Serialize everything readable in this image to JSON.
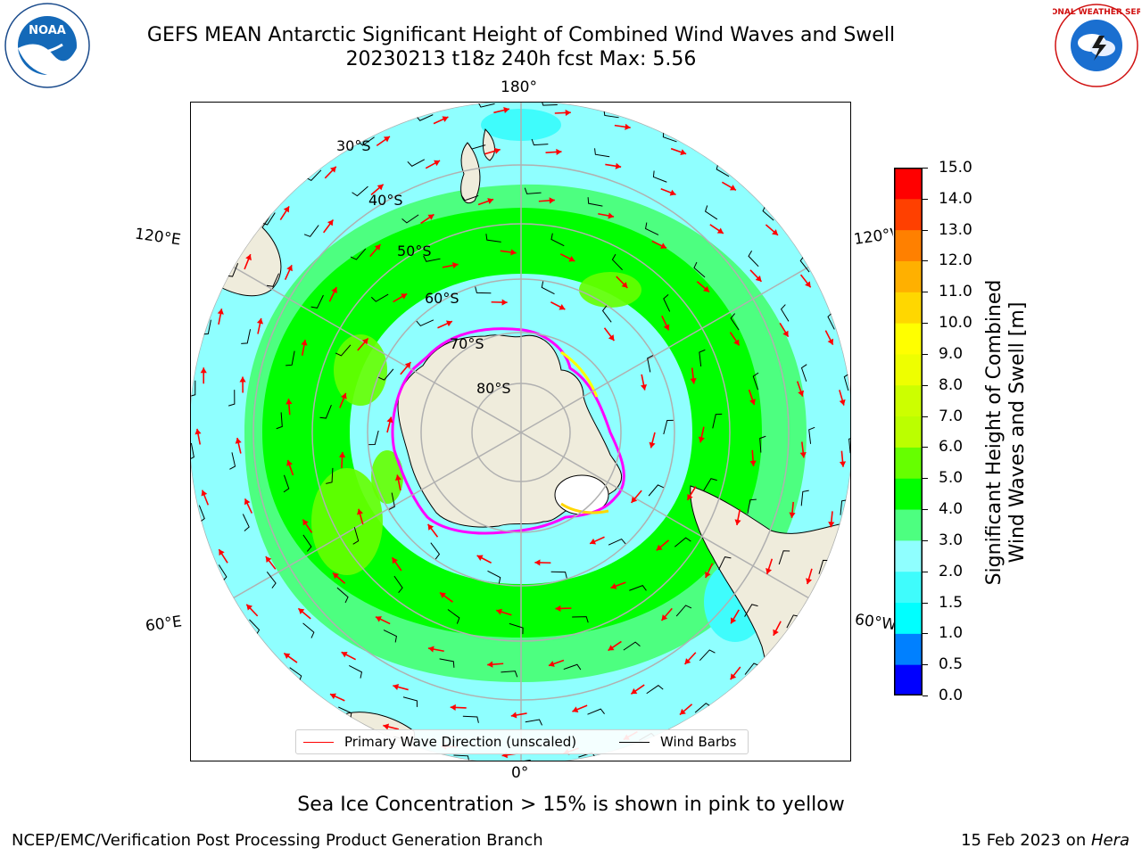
{
  "title": {
    "line1": "GEFS MEAN Antarctic Significant Height of Combined Wind Waves and Swell",
    "line2": "20230213 t18z 240h fcst   Max: 5.56"
  },
  "logos": {
    "left": "NOAA",
    "right": "NATIONAL WEATHER SERVICE"
  },
  "map": {
    "projection": "south-polar-stereographic",
    "longitude_labels": {
      "top": "180°",
      "bottom": "0°",
      "upper_left": "120°E",
      "upper_right": "120°W",
      "lower_left": "60°E",
      "lower_right": "60°W"
    },
    "latitude_labels": [
      "30°S",
      "40°S",
      "50°S",
      "60°S",
      "70°S",
      "80°S"
    ],
    "colors": {
      "land": "#efecdc",
      "grid": "#b0b0b0",
      "arrow": "#ff0000",
      "barb": "#000000",
      "sea_ice": [
        "#ff00ff",
        "#ffff00"
      ]
    }
  },
  "legend": {
    "wave_direction": "Primary Wave Direction (unscaled)",
    "wind_barbs": "Wind Barbs"
  },
  "colorbar": {
    "label_line1": "Significant Height of Combined",
    "label_line2": "Wind Waves and Swell [m]",
    "ticks": [
      "15.0",
      "14.0",
      "13.0",
      "12.0",
      "11.0",
      "10.0",
      "9.0",
      "8.0",
      "7.0",
      "6.0",
      "5.0",
      "4.0",
      "3.0",
      "2.0",
      "1.5",
      "1.0",
      "0.5",
      "0.0"
    ],
    "colors_bottom_to_top": [
      "#0000ff",
      "#0080ff",
      "#00ffff",
      "#3ffcfc",
      "#8fffff",
      "#4dff80",
      "#00ff00",
      "#66ff00",
      "#bbff00",
      "#ccff00",
      "#eeff00",
      "#ffff00",
      "#ffd700",
      "#ffb000",
      "#ff8000",
      "#ff4000",
      "#ff0000"
    ]
  },
  "caption": "Sea Ice Concentration > 15% is shown in pink to yellow",
  "footer": {
    "left": "NCEP/EMC/Verification Post Processing Product Generation Branch",
    "right_date": "15 Feb 2023 on ",
    "right_machine": "Hera"
  }
}
